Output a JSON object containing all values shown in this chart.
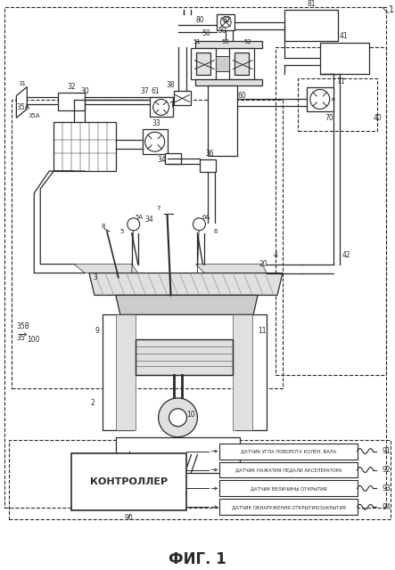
{
  "title": "ФИГ. 1",
  "bg": "#ffffff",
  "lc": "#2a2a2a",
  "gray1": "#cccccc",
  "gray2": "#e0e0e0",
  "gray3": "#aaaaaa",
  "sensor_labels": [
    "ДАТЧИК УГЛА ПОВОРОТА КОЛЕН. ВАЛА",
    "ДАТЧИК НАЖАТИЯ ПЕДАЛИ АКСЕЛЕРАТОРА",
    "ДАТЧИК ВЕЛИЧИНЫ ОТКРЫТИЯ",
    "ДАТЧИК ОБНАРУЖЕНИЯ ОТКРЫТИЯ/ЗАКРЫТИЯ"
  ],
  "sensor_ids": [
    "91",
    "92",
    "93",
    "94"
  ],
  "controller_label": "КОНТРОЛЛЕР",
  "controller_id": "90"
}
